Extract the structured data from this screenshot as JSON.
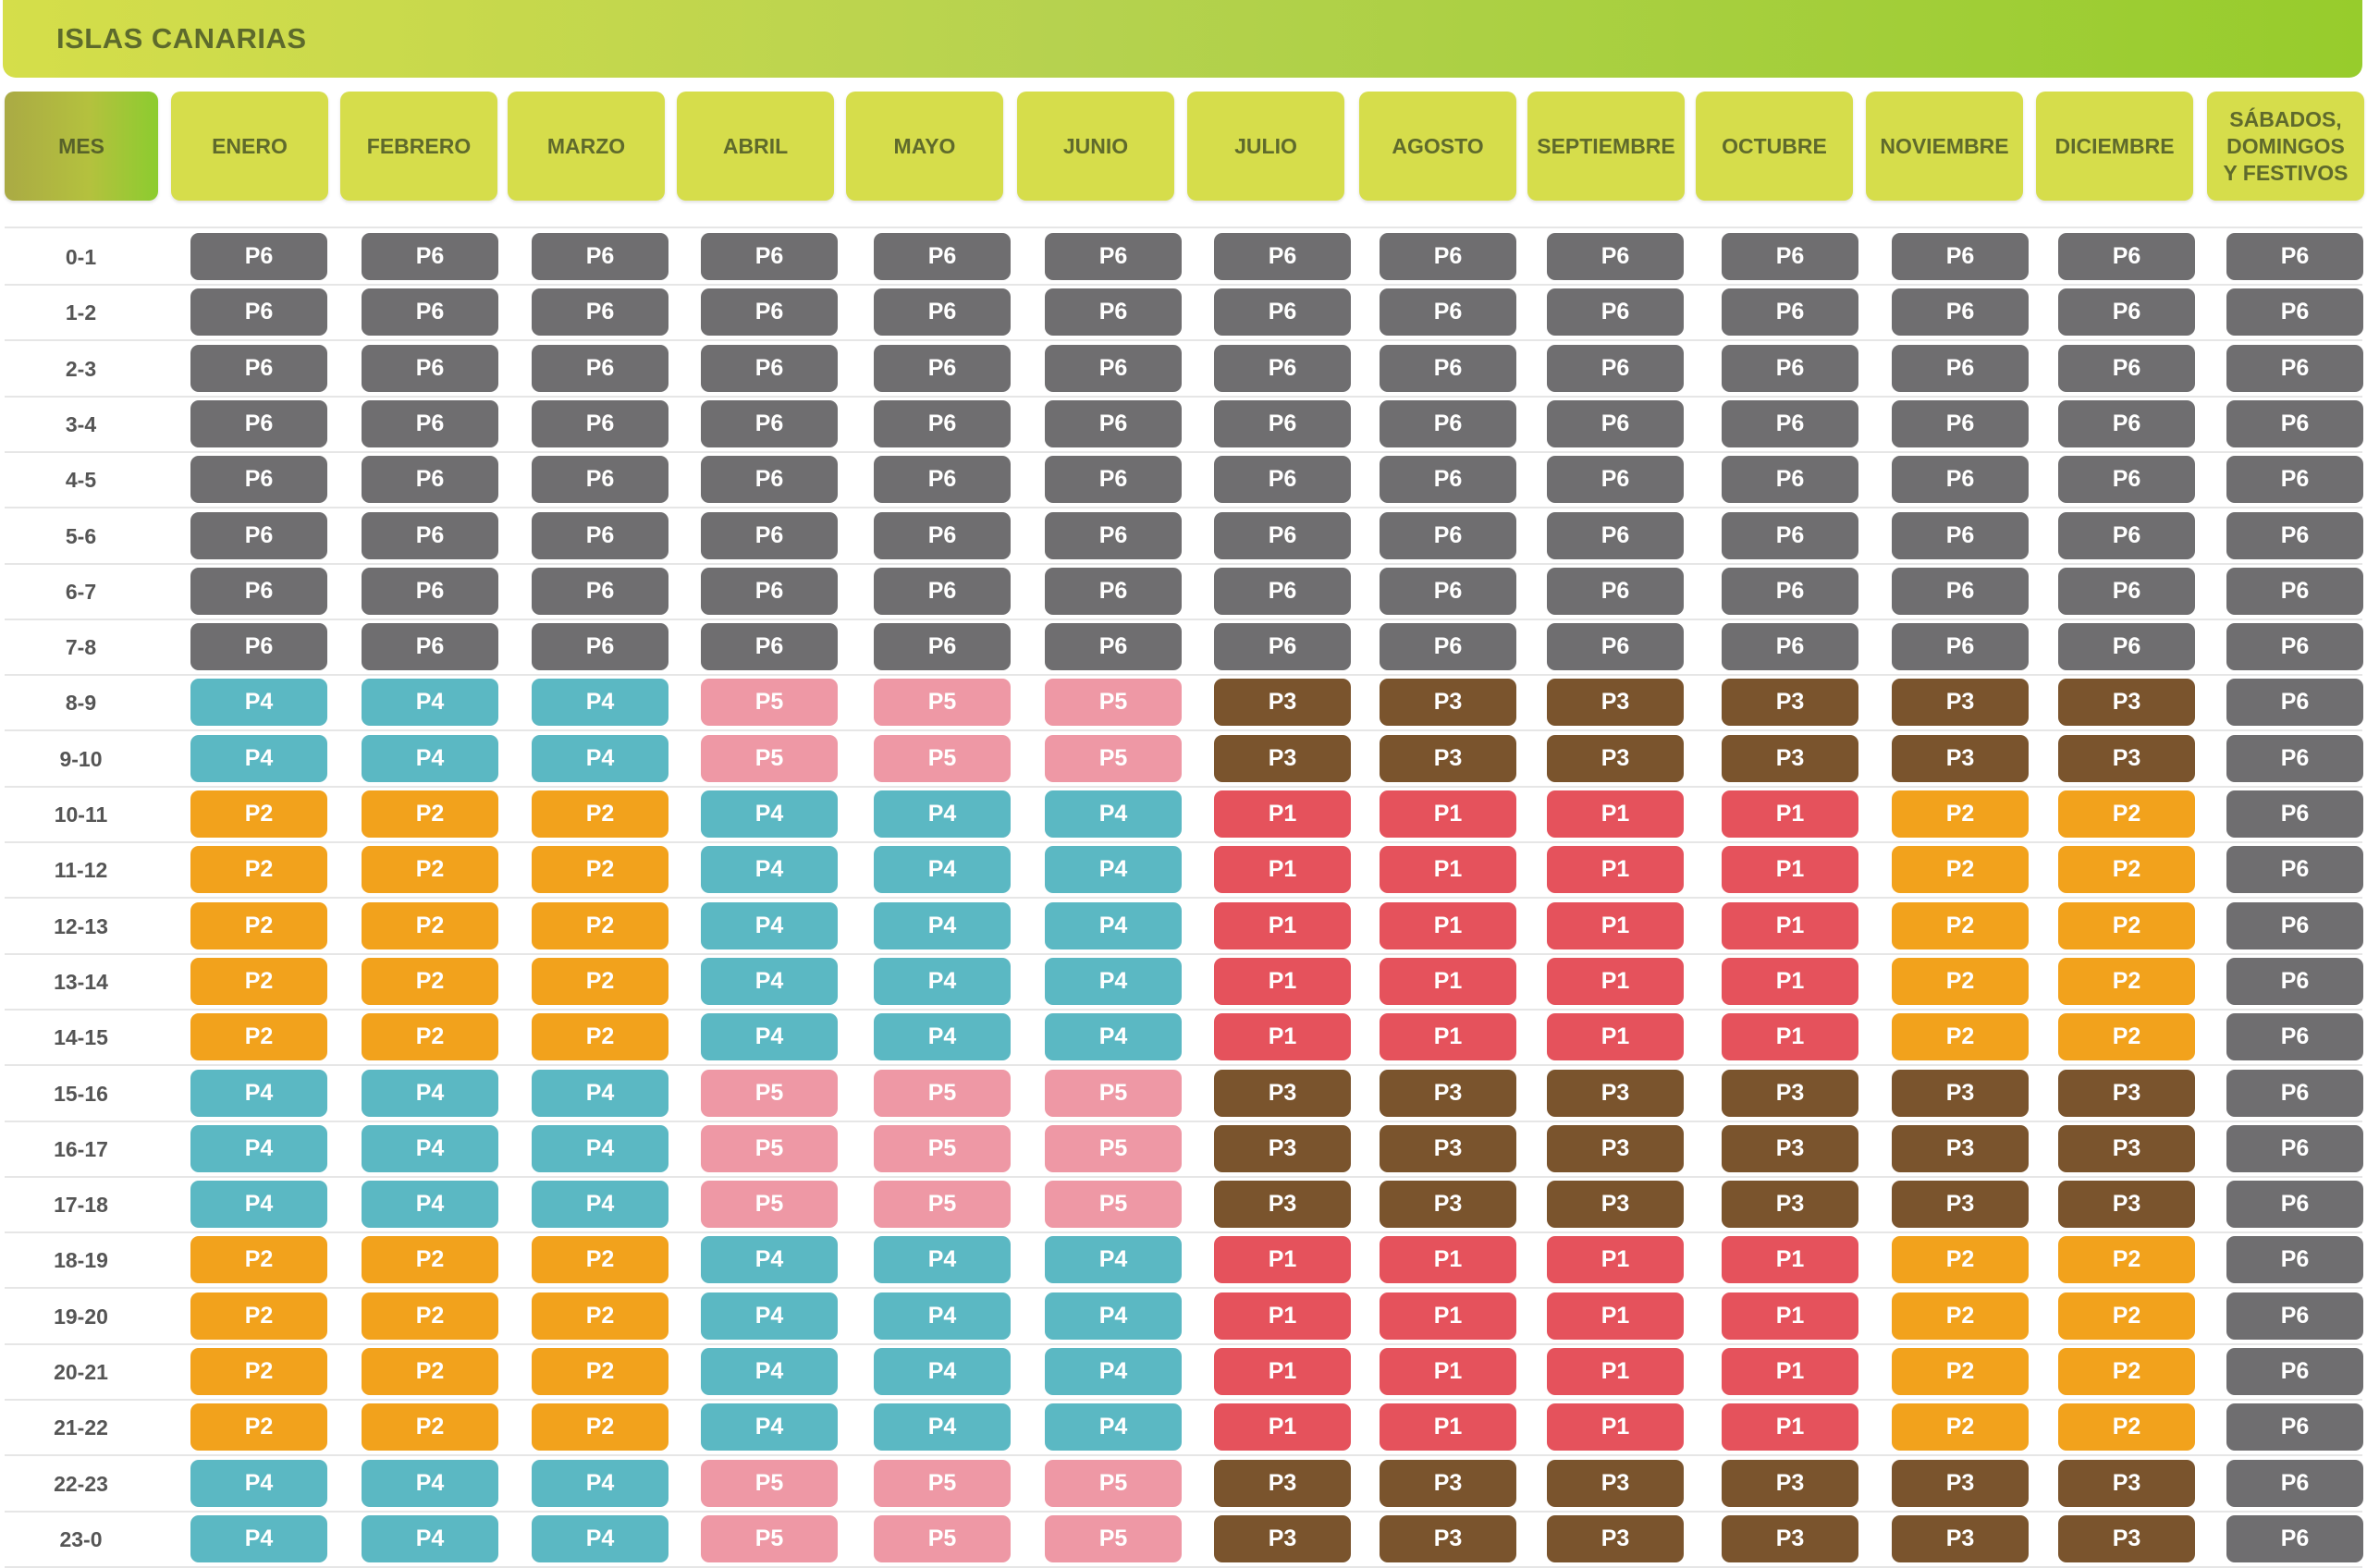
{
  "title": "ISLAS CANARIAS",
  "row_header_label": "MES",
  "columns": [
    "ENERO",
    "FEBRERO",
    "MARZO",
    "ABRIL",
    "MAYO",
    "JUNIO",
    "JULIO",
    "AGOSTO",
    "SEPTIEMBRE",
    "OCTUBRE",
    "NOVIEMBRE",
    "DICIEMBRE",
    "SÁBADOS,\nDOMINGOS\nY FESTIVOS"
  ],
  "hours": [
    "0-1",
    "1-2",
    "2-3",
    "3-4",
    "4-5",
    "5-6",
    "6-7",
    "7-8",
    "8-9",
    "9-10",
    "10-11",
    "11-12",
    "12-13",
    "13-14",
    "14-15",
    "15-16",
    "16-17",
    "17-18",
    "18-19",
    "19-20",
    "20-21",
    "21-22",
    "22-23",
    "23-0"
  ],
  "periods": [
    [
      "P6",
      "P6",
      "P6",
      "P6",
      "P6",
      "P6",
      "P6",
      "P6",
      "P6",
      "P6",
      "P6",
      "P6",
      "P6"
    ],
    [
      "P6",
      "P6",
      "P6",
      "P6",
      "P6",
      "P6",
      "P6",
      "P6",
      "P6",
      "P6",
      "P6",
      "P6",
      "P6"
    ],
    [
      "P6",
      "P6",
      "P6",
      "P6",
      "P6",
      "P6",
      "P6",
      "P6",
      "P6",
      "P6",
      "P6",
      "P6",
      "P6"
    ],
    [
      "P6",
      "P6",
      "P6",
      "P6",
      "P6",
      "P6",
      "P6",
      "P6",
      "P6",
      "P6",
      "P6",
      "P6",
      "P6"
    ],
    [
      "P6",
      "P6",
      "P6",
      "P6",
      "P6",
      "P6",
      "P6",
      "P6",
      "P6",
      "P6",
      "P6",
      "P6",
      "P6"
    ],
    [
      "P6",
      "P6",
      "P6",
      "P6",
      "P6",
      "P6",
      "P6",
      "P6",
      "P6",
      "P6",
      "P6",
      "P6",
      "P6"
    ],
    [
      "P6",
      "P6",
      "P6",
      "P6",
      "P6",
      "P6",
      "P6",
      "P6",
      "P6",
      "P6",
      "P6",
      "P6",
      "P6"
    ],
    [
      "P6",
      "P6",
      "P6",
      "P6",
      "P6",
      "P6",
      "P6",
      "P6",
      "P6",
      "P6",
      "P6",
      "P6",
      "P6"
    ],
    [
      "P4",
      "P4",
      "P4",
      "P5",
      "P5",
      "P5",
      "P3",
      "P3",
      "P3",
      "P3",
      "P3",
      "P3",
      "P6"
    ],
    [
      "P4",
      "P4",
      "P4",
      "P5",
      "P5",
      "P5",
      "P3",
      "P3",
      "P3",
      "P3",
      "P3",
      "P3",
      "P6"
    ],
    [
      "P2",
      "P2",
      "P2",
      "P4",
      "P4",
      "P4",
      "P1",
      "P1",
      "P1",
      "P1",
      "P2",
      "P2",
      "P6"
    ],
    [
      "P2",
      "P2",
      "P2",
      "P4",
      "P4",
      "P4",
      "P1",
      "P1",
      "P1",
      "P1",
      "P2",
      "P2",
      "P6"
    ],
    [
      "P2",
      "P2",
      "P2",
      "P4",
      "P4",
      "P4",
      "P1",
      "P1",
      "P1",
      "P1",
      "P2",
      "P2",
      "P6"
    ],
    [
      "P2",
      "P2",
      "P2",
      "P4",
      "P4",
      "P4",
      "P1",
      "P1",
      "P1",
      "P1",
      "P2",
      "P2",
      "P6"
    ],
    [
      "P2",
      "P2",
      "P2",
      "P4",
      "P4",
      "P4",
      "P1",
      "P1",
      "P1",
      "P1",
      "P2",
      "P2",
      "P6"
    ],
    [
      "P4",
      "P4",
      "P4",
      "P5",
      "P5",
      "P5",
      "P3",
      "P3",
      "P3",
      "P3",
      "P3",
      "P3",
      "P6"
    ],
    [
      "P4",
      "P4",
      "P4",
      "P5",
      "P5",
      "P5",
      "P3",
      "P3",
      "P3",
      "P3",
      "P3",
      "P3",
      "P6"
    ],
    [
      "P4",
      "P4",
      "P4",
      "P5",
      "P5",
      "P5",
      "P3",
      "P3",
      "P3",
      "P3",
      "P3",
      "P3",
      "P6"
    ],
    [
      "P2",
      "P2",
      "P2",
      "P4",
      "P4",
      "P4",
      "P1",
      "P1",
      "P1",
      "P1",
      "P2",
      "P2",
      "P6"
    ],
    [
      "P2",
      "P2",
      "P2",
      "P4",
      "P4",
      "P4",
      "P1",
      "P1",
      "P1",
      "P1",
      "P2",
      "P2",
      "P6"
    ],
    [
      "P2",
      "P2",
      "P2",
      "P4",
      "P4",
      "P4",
      "P1",
      "P1",
      "P1",
      "P1",
      "P2",
      "P2",
      "P6"
    ],
    [
      "P2",
      "P2",
      "P2",
      "P4",
      "P4",
      "P4",
      "P1",
      "P1",
      "P1",
      "P1",
      "P2",
      "P2",
      "P6"
    ],
    [
      "P4",
      "P4",
      "P4",
      "P5",
      "P5",
      "P5",
      "P3",
      "P3",
      "P3",
      "P3",
      "P3",
      "P3",
      "P6"
    ],
    [
      "P4",
      "P4",
      "P4",
      "P5",
      "P5",
      "P5",
      "P3",
      "P3",
      "P3",
      "P3",
      "P3",
      "P3",
      "P6"
    ]
  ],
  "period_colors": {
    "P1": "#e5525c",
    "P2": "#f2a21c",
    "P3": "#7a542d",
    "P4": "#5bb8c3",
    "P5": "#ee98a5",
    "P6": "#6f6e70"
  }
}
